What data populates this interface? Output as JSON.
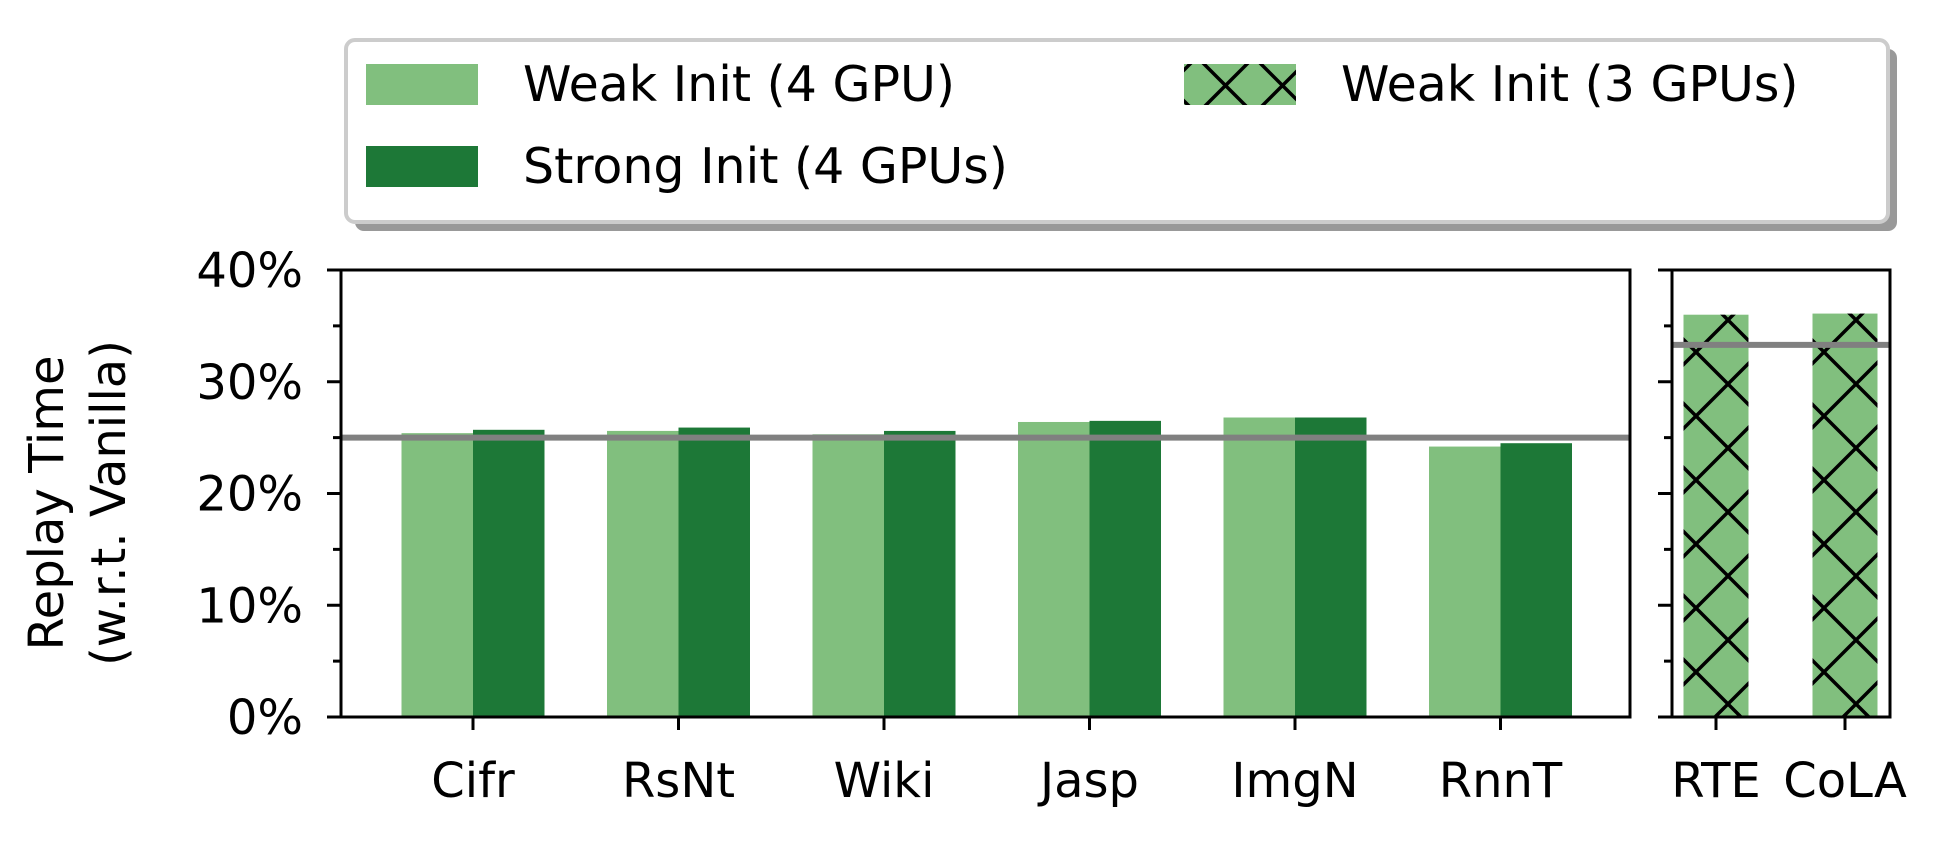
{
  "colors": {
    "weak": "#81bf7e",
    "strong": "#1d7837",
    "reference_line": "#808080",
    "hatch": "#000000"
  },
  "chart_data": [
    {
      "type": "bar",
      "categories": [
        "Cifr",
        "RsNt",
        "Wiki",
        "Jasp",
        "ImgN",
        "RnnT"
      ],
      "series": [
        {
          "name": "Weak Init (4 GPU)",
          "values": [
            25.4,
            25.6,
            25.3,
            26.4,
            26.8,
            24.2
          ]
        },
        {
          "name": "Strong Init (4 GPUs)",
          "values": [
            25.7,
            25.9,
            25.6,
            26.5,
            26.8,
            24.5
          ]
        }
      ],
      "reference_line": 25,
      "ylabel": "Replay Time\n(w.r.t. Vanilla)",
      "ylim": [
        0,
        40
      ],
      "yticks": [
        "0%",
        "10%",
        "20%",
        "30%",
        "40%"
      ],
      "grid": false
    },
    {
      "type": "bar",
      "categories": [
        "RTE",
        "CoLA"
      ],
      "series": [
        {
          "name": "Weak Init (3 GPUs)",
          "values": [
            36.0,
            36.1
          ],
          "hatch": "x"
        }
      ],
      "reference_line": 33.3,
      "ylim": [
        0,
        40
      ],
      "grid": false
    }
  ],
  "legend": {
    "placement": "top",
    "entries": [
      {
        "label": "Weak Init (4 GPU)",
        "style": "weak"
      },
      {
        "label": "Strong Init (4 GPUs)",
        "style": "strong"
      },
      {
        "label": "Weak Init (3 GPUs)",
        "style": "hatched"
      }
    ]
  },
  "ylabel_lines": [
    "Replay Time",
    "(w.r.t. Vanilla)"
  ]
}
